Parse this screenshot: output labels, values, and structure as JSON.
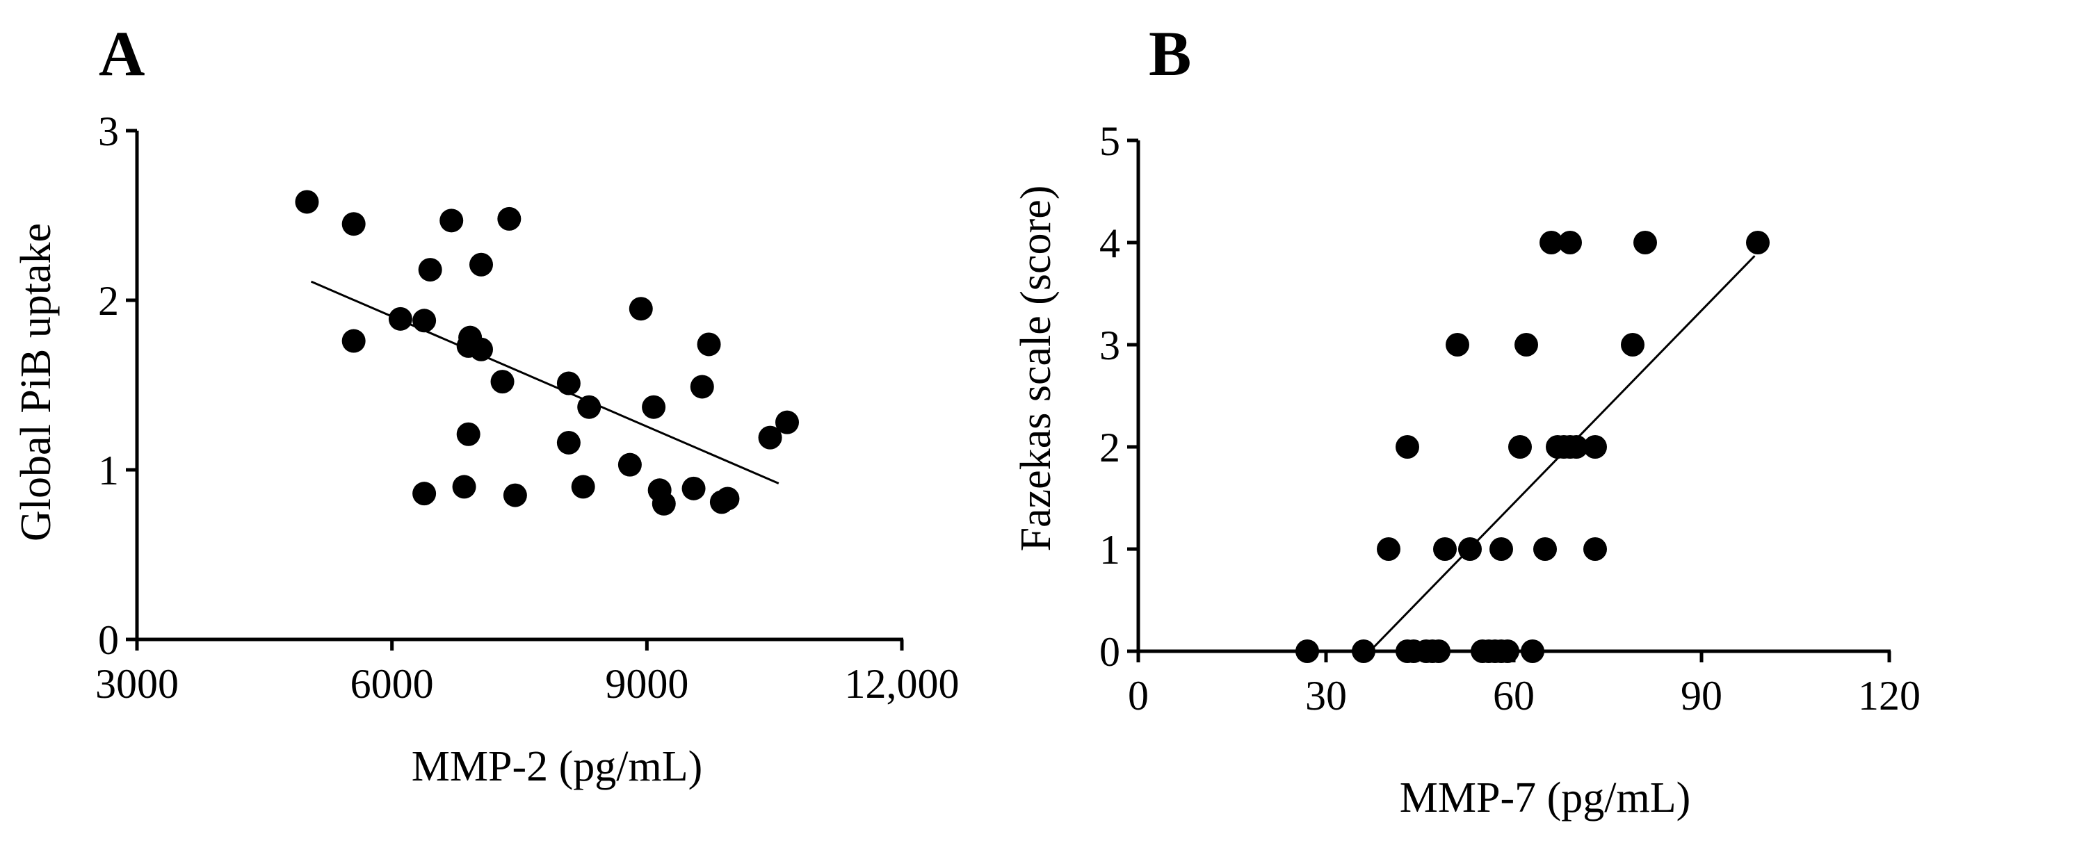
{
  "chart_data": [
    {
      "panel": "A",
      "type": "scatter",
      "xlabel": "MMP-2 (pg/mL)",
      "ylabel": "Global PiB uptake",
      "xlim": [
        3000,
        12000
      ],
      "ylim": [
        0,
        3
      ],
      "xticks": [
        3000,
        6000,
        9000,
        12000
      ],
      "xtick_labels": [
        "3000",
        "6000",
        "9000",
        "12,000"
      ],
      "yticks": [
        0,
        1,
        2,
        3
      ],
      "ytick_labels": [
        "0",
        "1",
        "2",
        "3"
      ],
      "points": [
        [
          5000,
          2.58
        ],
        [
          5550,
          2.45
        ],
        [
          5550,
          1.76
        ],
        [
          6100,
          1.89
        ],
        [
          6380,
          1.88
        ],
        [
          6450,
          2.18
        ],
        [
          6380,
          0.86
        ],
        [
          6700,
          2.47
        ],
        [
          6850,
          0.9
        ],
        [
          6900,
          1.21
        ],
        [
          6900,
          1.73
        ],
        [
          6920,
          1.78
        ],
        [
          7050,
          1.71
        ],
        [
          7050,
          2.21
        ],
        [
          7300,
          1.52
        ],
        [
          7380,
          2.48
        ],
        [
          7450,
          0.85
        ],
        [
          8080,
          1.51
        ],
        [
          8080,
          1.16
        ],
        [
          8250,
          0.9
        ],
        [
          8320,
          1.37
        ],
        [
          8800,
          1.03
        ],
        [
          8930,
          1.95
        ],
        [
          9080,
          1.37
        ],
        [
          9150,
          0.88
        ],
        [
          9200,
          0.8
        ],
        [
          9550,
          0.89
        ],
        [
          9650,
          1.49
        ],
        [
          9730,
          1.74
        ],
        [
          9880,
          0.81
        ],
        [
          9950,
          0.83
        ],
        [
          10450,
          1.19
        ],
        [
          10650,
          1.28
        ]
      ],
      "fit_line": [
        [
          5050,
          2.11
        ],
        [
          10550,
          0.92
        ]
      ]
    },
    {
      "panel": "B",
      "type": "scatter",
      "xlabel": "MMP-7 (pg/mL)",
      "ylabel": "Fazekas scale (score)",
      "xlim": [
        0,
        120
      ],
      "ylim": [
        0,
        5
      ],
      "xticks": [
        0,
        30,
        60,
        90,
        120
      ],
      "xtick_labels": [
        "0",
        "30",
        "60",
        "90",
        "120"
      ],
      "yticks": [
        0,
        1,
        2,
        3,
        4,
        5
      ],
      "ytick_labels": [
        "0",
        "1",
        "2",
        "3",
        "4",
        "5"
      ],
      "points": [
        [
          27,
          0
        ],
        [
          36,
          0
        ],
        [
          43,
          0
        ],
        [
          44,
          0
        ],
        [
          46,
          0
        ],
        [
          47,
          0
        ],
        [
          48,
          0
        ],
        [
          55,
          0
        ],
        [
          56,
          0
        ],
        [
          57,
          0
        ],
        [
          58,
          0
        ],
        [
          59,
          0
        ],
        [
          63,
          0
        ],
        [
          40,
          1
        ],
        [
          49,
          1
        ],
        [
          53,
          1
        ],
        [
          58,
          1
        ],
        [
          65,
          1
        ],
        [
          73,
          1
        ],
        [
          43,
          2
        ],
        [
          61,
          2
        ],
        [
          67,
          2
        ],
        [
          68,
          2
        ],
        [
          69,
          2
        ],
        [
          70,
          2
        ],
        [
          73,
          2
        ],
        [
          51,
          3
        ],
        [
          62,
          3
        ],
        [
          79,
          3
        ],
        [
          66,
          4
        ],
        [
          69,
          4
        ],
        [
          81,
          4
        ],
        [
          99,
          4
        ]
      ],
      "fit_line": [
        [
          37,
          0
        ],
        [
          98.5,
          3.87
        ]
      ]
    }
  ]
}
